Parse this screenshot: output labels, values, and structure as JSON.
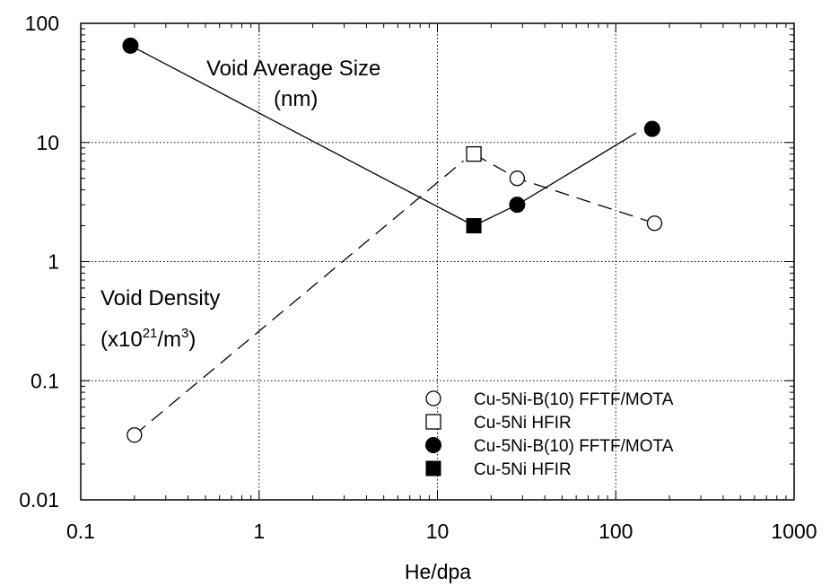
{
  "chart_data": {
    "type": "scatter",
    "xlabel": "He/dpa",
    "ylabel": "",
    "xscale": "log",
    "yscale": "log",
    "xlim": [
      0.1,
      1000
    ],
    "ylim": [
      0.01,
      100
    ],
    "x_tick_labels": [
      "0.1",
      "1",
      "10",
      "100",
      "1000"
    ],
    "y_tick_labels": [
      "0.01",
      "0.1",
      "1",
      "10",
      "100"
    ],
    "grid": true,
    "legend_position": "bottom-right",
    "annotations": {
      "size_line1": "Void Average Size",
      "size_line2": "(nm)",
      "density_line1": "Void Density",
      "density_prefix": "(x10",
      "density_exp1": "21",
      "density_mid": "/m",
      "density_exp2": "3",
      "density_suffix": ")"
    },
    "series": [
      {
        "name": "Cu-5Ni-B(10)  FFTF/MOTA",
        "marker": "open-circle",
        "quantity": "Void Density",
        "points": [
          [
            0.2,
            0.035
          ],
          [
            28,
            5.0
          ],
          [
            165,
            2.1
          ]
        ]
      },
      {
        "name": "Cu-5Ni  HFIR",
        "marker": "open-square",
        "quantity": "Void Density",
        "points": [
          [
            16,
            8.0
          ]
        ]
      },
      {
        "name": "Cu-5Ni-B(10)  FFTF/MOTA",
        "marker": "filled-circle",
        "quantity": "Void Average Size",
        "points": [
          [
            0.19,
            65
          ],
          [
            28,
            3.0
          ],
          [
            160,
            13
          ]
        ]
      },
      {
        "name": "Cu-5Ni  HFIR",
        "marker": "filled-square",
        "quantity": "Void Average Size",
        "points": [
          [
            16,
            2.0
          ]
        ]
      }
    ],
    "lines": [
      {
        "style": "solid",
        "points": [
          [
            0.19,
            65
          ],
          [
            16,
            2.0
          ]
        ]
      },
      {
        "style": "solid",
        "points": [
          [
            16,
            2.0
          ],
          [
            28,
            3.0
          ],
          [
            130,
            12
          ]
        ]
      },
      {
        "style": "dashed",
        "points": [
          [
            0.2,
            0.035
          ],
          [
            14,
            7.0
          ]
        ]
      },
      {
        "style": "dashed",
        "points": [
          [
            16,
            8.0
          ],
          [
            28,
            5.0
          ],
          [
            165,
            2.1
          ]
        ]
      }
    ]
  }
}
